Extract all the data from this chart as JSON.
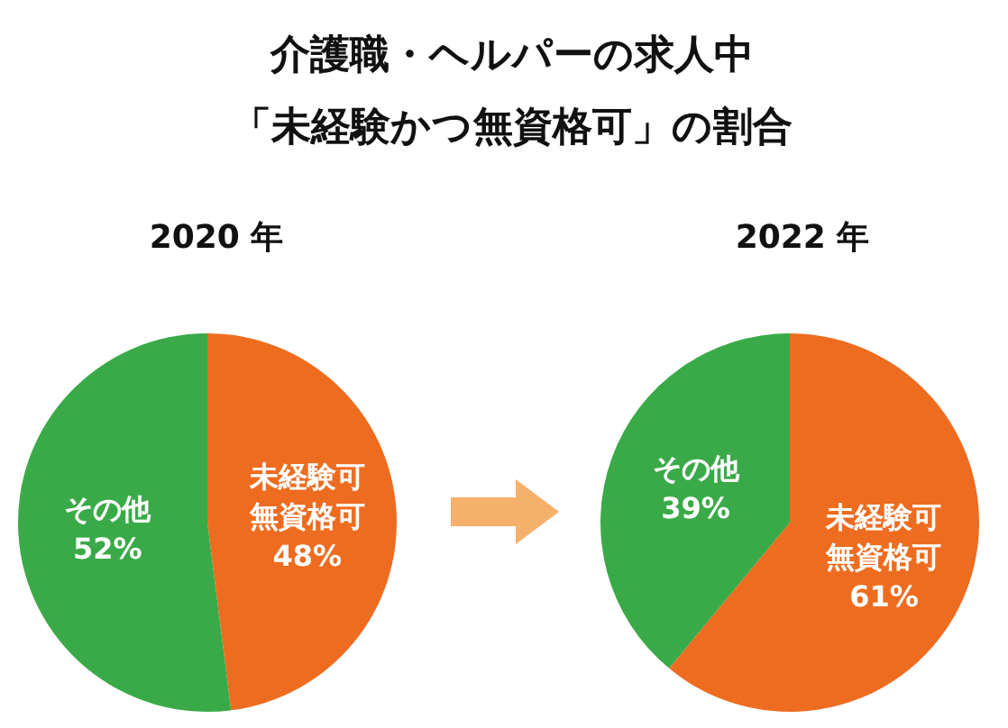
{
  "chart_data": [
    {
      "type": "pie",
      "title": "介護職・ヘルパーの求人中「未経験かつ無資格可」の割合",
      "subtitle": "2020 年",
      "categories": [
        "未経験可無資格可",
        "その他"
      ],
      "values": [
        48,
        52
      ],
      "colors": [
        "#ee6c1f",
        "#3aaa48"
      ],
      "value_labels": [
        "48%",
        "52%"
      ]
    },
    {
      "type": "pie",
      "subtitle": "2022 年",
      "categories": [
        "未経験可無資格可",
        "その他"
      ],
      "values": [
        61,
        39
      ],
      "colors": [
        "#ee6c1f",
        "#3aaa48"
      ],
      "value_labels": [
        "61%",
        "39%"
      ]
    }
  ]
}
